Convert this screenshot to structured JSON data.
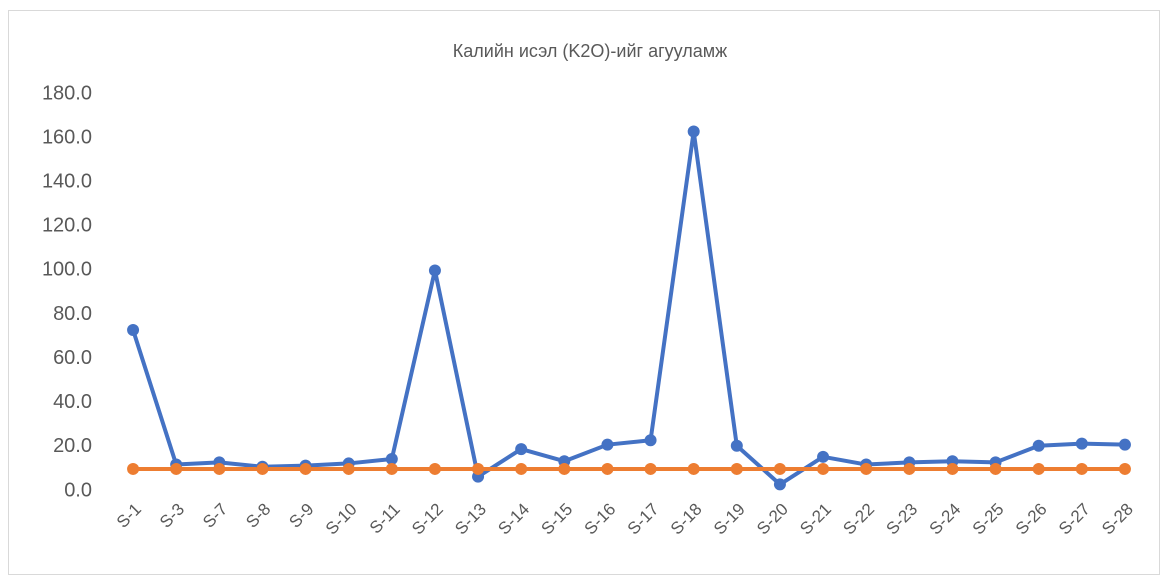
{
  "chart_data": {
    "type": "line",
    "title": "Калийн исэл (K2O)-ийг агууламж",
    "categories": [
      "S-1",
      "S-3",
      "S-7",
      "S-8",
      "S-9",
      "S-10",
      "S-11",
      "S-12",
      "S-13",
      "S-14",
      "S-15",
      "S-16",
      "S-17",
      "S-18",
      "S-19",
      "S-20",
      "S-21",
      "S-22",
      "S-23",
      "S-24",
      "S-25",
      "S-26",
      "S-27",
      "S-28"
    ],
    "series": [
      {
        "color": "#4472c4",
        "values": [
          73,
          12,
          13,
          11,
          11.5,
          12.5,
          14.5,
          100,
          6.5,
          19,
          13.5,
          21,
          23,
          163,
          20.5,
          3,
          15.5,
          12,
          13,
          13.5,
          13,
          20.5,
          21.5,
          21
        ]
      },
      {
        "color": "#ed7d31",
        "values": [
          10,
          10,
          10,
          10,
          10,
          10,
          10,
          10,
          10,
          10,
          10,
          10,
          10,
          10,
          10,
          10,
          10,
          10,
          10,
          10,
          10,
          10,
          10,
          10
        ]
      }
    ],
    "ylim": [
      0,
      180
    ],
    "yticks": [
      {
        "value": 0,
        "label": "0.0"
      },
      {
        "value": 20,
        "label": "20.0"
      },
      {
        "value": 40,
        "label": "40.0"
      },
      {
        "value": 60,
        "label": "60.0"
      },
      {
        "value": 80,
        "label": "80.0"
      },
      {
        "value": 100,
        "label": "100.0"
      },
      {
        "value": 120,
        "label": "120.0"
      },
      {
        "value": 140,
        "label": "140.0"
      },
      {
        "value": 160,
        "label": "160.0"
      },
      {
        "value": 180,
        "label": "180.0"
      }
    ],
    "grid": false
  }
}
